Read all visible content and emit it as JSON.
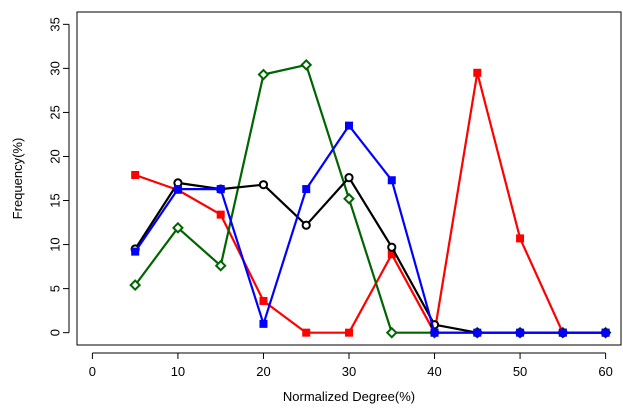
{
  "chart_data": {
    "type": "line",
    "title": "",
    "xlabel": "Normalized Degree(%)",
    "ylabel": "Frequency(%)",
    "xlim": [
      0,
      60
    ],
    "ylim": [
      0,
      35
    ],
    "xticks": [
      0,
      10,
      20,
      30,
      40,
      50,
      60
    ],
    "yticks": [
      0,
      5,
      10,
      15,
      20,
      25,
      30,
      35
    ],
    "xtick_labels": [
      "0",
      "10",
      "20",
      "30",
      "40",
      "50",
      "60"
    ],
    "ytick_labels": [
      "0",
      "5",
      "10",
      "15",
      "20",
      "25",
      "30",
      "35"
    ],
    "grid": false,
    "legend": "none",
    "series": [
      {
        "color": "#ff0000",
        "marker": "filled-square",
        "x": [
          5,
          10,
          15,
          20,
          25,
          30,
          35,
          40,
          45,
          50,
          55,
          60
        ],
        "y": [
          17.9,
          16.2,
          13.4,
          3.6,
          0,
          0,
          8.9,
          0,
          29.5,
          10.7,
          0,
          0
        ]
      },
      {
        "color": "#006400",
        "marker": "open-diamond",
        "x": [
          5,
          10,
          15,
          20,
          25,
          30,
          35,
          40,
          45,
          50,
          55,
          60
        ],
        "y": [
          5.4,
          11.9,
          7.6,
          29.3,
          30.4,
          15.2,
          0,
          0,
          0,
          0,
          0,
          0
        ]
      },
      {
        "color": "#000000",
        "marker": "open-circle",
        "x": [
          5,
          10,
          15,
          20,
          25,
          30,
          35,
          40,
          45,
          50,
          55,
          60
        ],
        "y": [
          9.5,
          17.0,
          16.3,
          16.8,
          12.2,
          17.6,
          9.7,
          0.9,
          0,
          0,
          0,
          0
        ]
      },
      {
        "color": "#0000ff",
        "marker": "filled-square",
        "x": [
          5,
          10,
          15,
          20,
          25,
          30,
          35,
          40,
          45,
          50,
          55,
          60
        ],
        "y": [
          9.2,
          16.3,
          16.3,
          1.0,
          16.3,
          23.5,
          17.3,
          0,
          0,
          0,
          0,
          0
        ]
      }
    ]
  }
}
